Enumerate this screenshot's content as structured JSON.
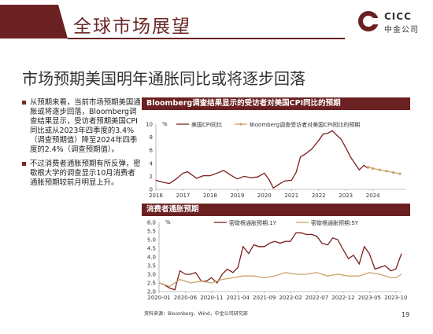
{
  "header": {
    "title": "全球市场展望",
    "logo_en": "CICC",
    "logo_cn": "中金公司"
  },
  "subtitle": "市场预期美国明年通胀同比或将逐步回落",
  "bullets": [
    "从预期来看，当前市场预期美国通胀或将逐步回落，Bloomberg调查结果显示，受访者预期美国CPI同比或从2023年四季度的3.4%（调查预期值）降至2024年四季度的2.4%（调查预期值）。",
    "不过消费者通胀预期有所反弹，密歇根大学的调查显示10月消费者通胀预期较前月明显上升。"
  ],
  "colors": {
    "dark_red": "#6b2121",
    "cpi_line": "#7b1f1f",
    "forecast_line": "#c9a46a",
    "mich_5y": "#c9a46a"
  },
  "chart_data": [
    {
      "type": "line",
      "title": "Bloomberg调查结果显示的受访者对美国CPI同比的预期",
      "unit_label": "%",
      "ylim": [
        0,
        10
      ],
      "yticks": [
        0,
        2,
        4,
        6,
        8,
        10
      ],
      "xlim": [
        2016.0,
        2025.2
      ],
      "xticks": [
        "2016",
        "2017",
        "2018",
        "2019",
        "2020",
        "2021",
        "2022",
        "2023",
        "2024"
      ],
      "legend": "top",
      "series": [
        {
          "name": "美国CPI同比",
          "x": [
            2016.0,
            2016.25,
            2016.5,
            2016.75,
            2017.0,
            2017.17,
            2017.5,
            2017.75,
            2018.0,
            2018.25,
            2018.5,
            2018.75,
            2019.0,
            2019.25,
            2019.5,
            2019.75,
            2020.0,
            2020.17,
            2020.33,
            2020.5,
            2020.75,
            2021.0,
            2021.17,
            2021.33,
            2021.5,
            2021.75,
            2022.0,
            2022.17,
            2022.33,
            2022.5,
            2022.67,
            2022.83,
            2023.0,
            2023.17,
            2023.33,
            2023.5,
            2023.67,
            2023.83
          ],
          "y": [
            1.4,
            1.1,
            0.9,
            1.6,
            2.5,
            2.7,
            1.7,
            2.1,
            2.1,
            2.5,
            2.9,
            2.2,
            1.6,
            2.0,
            1.8,
            1.9,
            2.5,
            1.5,
            0.2,
            0.7,
            1.3,
            1.4,
            2.6,
            5.0,
            5.4,
            6.2,
            7.5,
            8.5,
            8.6,
            9.0,
            8.3,
            7.7,
            6.4,
            5.0,
            4.0,
            3.0,
            3.7,
            3.2
          ]
        },
        {
          "name": "Bloomberg调查受访者对美国CPI同比的预期",
          "x": [
            2023.83,
            2024.0,
            2024.25,
            2024.5,
            2024.75,
            2025.0
          ],
          "y": [
            3.4,
            3.2,
            3.0,
            2.8,
            2.6,
            2.4
          ]
        }
      ]
    },
    {
      "type": "line",
      "title": "消费者通胀预期",
      "unit_label": "%",
      "ylim": [
        2.0,
        6.0
      ],
      "yticks": [
        "2.0",
        "2.5",
        "3.0",
        "3.5",
        "4.0",
        "4.5",
        "5.0",
        "5.5",
        "6.0"
      ],
      "xlim": [
        2020.0,
        2023.84
      ],
      "xticks": [
        "2020-01",
        "2020-06",
        "2020-11",
        "2021-04",
        "2021-09",
        "2022-02",
        "2022-07",
        "2022-12",
        "2023-05",
        "2023-10"
      ],
      "legend": "top",
      "series": [
        {
          "name": "密歇根通胀预期:1Y",
          "x": [
            2020.0,
            2020.08,
            2020.17,
            2020.25,
            2020.33,
            2020.42,
            2020.5,
            2020.58,
            2020.67,
            2020.75,
            2020.83,
            2020.92,
            2021.0,
            2021.08,
            2021.17,
            2021.25,
            2021.33,
            2021.42,
            2021.5,
            2021.58,
            2021.67,
            2021.75,
            2021.83,
            2021.92,
            2022.0,
            2022.08,
            2022.17,
            2022.25,
            2022.33,
            2022.42,
            2022.5,
            2022.58,
            2022.67,
            2022.75,
            2022.83,
            2022.92,
            2023.0,
            2023.08,
            2023.17,
            2023.25,
            2023.33,
            2023.42,
            2023.5,
            2023.58,
            2023.67,
            2023.75,
            2023.84
          ],
          "y": [
            2.5,
            2.4,
            2.2,
            2.1,
            3.2,
            3.0,
            3.0,
            3.1,
            2.6,
            2.6,
            2.8,
            2.5,
            3.0,
            3.3,
            3.1,
            3.4,
            4.6,
            4.2,
            4.7,
            4.6,
            4.6,
            4.8,
            4.9,
            4.8,
            4.9,
            4.9,
            5.4,
            5.4,
            5.3,
            5.3,
            5.2,
            4.8,
            4.7,
            5.1,
            5.0,
            4.4,
            3.9,
            4.1,
            3.6,
            4.6,
            4.2,
            3.3,
            3.4,
            3.5,
            3.2,
            3.3,
            4.2
          ]
        },
        {
          "name": "密歇根通胀预期:5Y",
          "x": [
            2020.0,
            2020.17,
            2020.33,
            2020.5,
            2020.67,
            2020.83,
            2021.0,
            2021.17,
            2021.33,
            2021.5,
            2021.67,
            2021.83,
            2022.0,
            2022.17,
            2022.33,
            2022.5,
            2022.67,
            2022.83,
            2023.0,
            2023.17,
            2023.33,
            2023.5,
            2023.67,
            2023.75,
            2023.84
          ],
          "y": [
            2.5,
            2.3,
            2.7,
            2.5,
            2.6,
            2.5,
            2.7,
            2.8,
            2.9,
            2.9,
            2.8,
            2.9,
            3.1,
            3.0,
            3.0,
            3.1,
            2.9,
            3.0,
            2.9,
            2.9,
            3.1,
            3.0,
            2.8,
            2.8,
            3.0
          ]
        }
      ]
    }
  ],
  "footer": {
    "source": "资料来源：Bloomberg，Wind，中金公司研究部",
    "page": "19"
  }
}
